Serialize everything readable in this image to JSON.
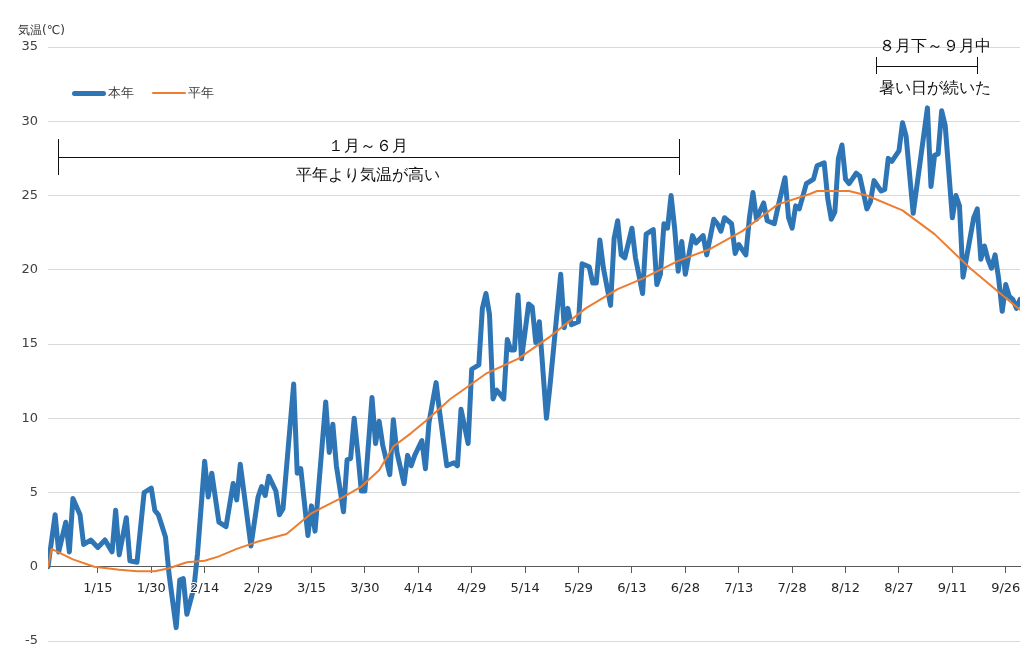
{
  "chart_data": {
    "type": "line",
    "ylabel": "気温(℃)",
    "xlim": [
      "--01-01",
      "--09-30"
    ],
    "xticks": [
      {
        "value": "--01-15",
        "label": "1/15"
      },
      {
        "value": "--01-30",
        "label": "1/30"
      },
      {
        "value": "--02-14",
        "label": "2/14"
      },
      {
        "value": "--02-29",
        "label": "2/29"
      },
      {
        "value": "--03-15",
        "label": "3/15"
      },
      {
        "value": "--03-30",
        "label": "3/30"
      },
      {
        "value": "--04-14",
        "label": "4/14"
      },
      {
        "value": "--04-29",
        "label": "4/29"
      },
      {
        "value": "--05-14",
        "label": "5/14"
      },
      {
        "value": "--05-29",
        "label": "5/29"
      },
      {
        "value": "--06-13",
        "label": "6/13"
      },
      {
        "value": "--06-28",
        "label": "6/28"
      },
      {
        "value": "--07-13",
        "label": "7/13"
      },
      {
        "value": "--07-28",
        "label": "7/28"
      },
      {
        "value": "--08-12",
        "label": "8/12"
      },
      {
        "value": "--08-27",
        "label": "8/27"
      },
      {
        "value": "--09-11",
        "label": "9/11"
      },
      {
        "value": "--09-26",
        "label": "9/26"
      }
    ],
    "ylim": [
      -5,
      35
    ],
    "yticks": [
      -5,
      0,
      5,
      10,
      15,
      20,
      25,
      30,
      35
    ],
    "grid": "y",
    "legend": "top left",
    "marker": "none",
    "annotations": [
      "１月～６月",
      "平年より気温が高い",
      "８月下～９月中",
      "暑い日が続いた"
    ],
    "series": [
      {
        "name": "本年",
        "color": "#2e75b6",
        "x": [
          "--01-01",
          "--01-03",
          "--01-04",
          "--01-06",
          "--01-07",
          "--01-08",
          "--01-10",
          "--01-11",
          "--01-13",
          "--01-15",
          "--01-17",
          "--01-19",
          "--01-20",
          "--01-21",
          "--01-23",
          "--01-24",
          "--01-26",
          "--01-28",
          "--01-30",
          "--01-31",
          "--02-01",
          "--02-03",
          "--02-04",
          "--02-06",
          "--02-07",
          "--02-08",
          "--02-09",
          "--02-11",
          "--02-12",
          "--02-14",
          "--02-15",
          "--02-16",
          "--02-18",
          "--02-20",
          "--02-22",
          "--02-23",
          "--02-24",
          "--02-27",
          "--02-29",
          "--03-01",
          "--03-02",
          "--03-03",
          "--03-05",
          "--03-06",
          "--03-07",
          "--03-10",
          "--03-11",
          "--03-12",
          "--03-14",
          "--03-15",
          "--03-16",
          "--03-19",
          "--03-20",
          "--03-21",
          "--03-22",
          "--03-24",
          "--03-25",
          "--03-26",
          "--03-27",
          "--03-28",
          "--03-29",
          "--03-30",
          "--04-01",
          "--04-02",
          "--04-03",
          "--04-04",
          "--04-06",
          "--04-07",
          "--04-08",
          "--04-10",
          "--04-11",
          "--04-12",
          "--04-13",
          "--04-15",
          "--04-16",
          "--04-17",
          "--04-19",
          "--04-20",
          "--04-22",
          "--04-24",
          "--04-25",
          "--04-26",
          "--04-28",
          "--04-29",
          "--05-01",
          "--05-02",
          "--05-03",
          "--05-04",
          "--05-05",
          "--05-06",
          "--05-08",
          "--05-09",
          "--05-10",
          "--05-11",
          "--05-12",
          "--05-13",
          "--05-15",
          "--05-16",
          "--05-17",
          "--05-18",
          "--05-20",
          "--05-21",
          "--05-22",
          "--05-24",
          "--05-25",
          "--05-26",
          "--05-27",
          "--05-29",
          "--05-30",
          "--06-01",
          "--06-02",
          "--06-03",
          "--06-04",
          "--06-05",
          "--06-07",
          "--06-08",
          "--06-09",
          "--06-10",
          "--06-11",
          "--06-13",
          "--06-14",
          "--06-16",
          "--06-17",
          "--06-19",
          "--06-20",
          "--06-21",
          "--06-22",
          "--06-23",
          "--06-24",
          "--06-25",
          "--06-26",
          "--06-27",
          "--06-28",
          "--06-30",
          "--07-01",
          "--07-03",
          "--07-04",
          "--07-06",
          "--07-07",
          "--07-08",
          "--07-09",
          "--07-11",
          "--07-12",
          "--07-13",
          "--07-15",
          "--07-16",
          "--07-17",
          "--07-18",
          "--07-20",
          "--07-21",
          "--07-23",
          "--07-24",
          "--07-26",
          "--07-27",
          "--07-28",
          "--07-29",
          "--07-30",
          "--08-01",
          "--08-03",
          "--08-04",
          "--08-06",
          "--08-07",
          "--08-08",
          "--08-09",
          "--08-10",
          "--08-11",
          "--08-12",
          "--08-13",
          "--08-15",
          "--08-16",
          "--08-18",
          "--08-19",
          "--08-20",
          "--08-22",
          "--08-23",
          "--08-24",
          "--08-25",
          "--08-27",
          "--08-28",
          "--08-29",
          "--08-31",
          "--09-04",
          "--09-05",
          "--09-06",
          "--09-07",
          "--09-08",
          "--09-09",
          "--09-11",
          "--09-12",
          "--09-13",
          "--09-14",
          "--09-17",
          "--09-18",
          "--09-19",
          "--09-20",
          "--09-21",
          "--09-22",
          "--09-23",
          "--09-24",
          "--09-25",
          "--09-26",
          "--09-27",
          "--09-28",
          "--09-29",
          "--09-30"
        ],
        "values": [
          0,
          3.5,
          1.0,
          3.0,
          1.0,
          4.6,
          3.5,
          1.5,
          1.8,
          1.3,
          1.8,
          1.0,
          3.8,
          0.8,
          3.3,
          0.4,
          0.3,
          5.0,
          5.3,
          3.8,
          3.5,
          2.0,
          -0.5,
          -4.1,
          -0.9,
          -0.8,
          -3.2,
          -1.4,
          0.9,
          7.1,
          4.7,
          6.3,
          3.0,
          2.7,
          5.6,
          4.5,
          6.9,
          1.4,
          4.7,
          5.4,
          4.8,
          6.1,
          5.1,
          3.5,
          3.9,
          12.3,
          6.3,
          6.6,
          2.1,
          4.1,
          2.4,
          11.1,
          7.7,
          9.6,
          6.8,
          3.7,
          7.2,
          7.3,
          10.0,
          7.7,
          5.1,
          5.1,
          11.4,
          8.3,
          9.8,
          8.2,
          6.2,
          9.9,
          7.7,
          5.6,
          7.5,
          6.8,
          7.5,
          8.5,
          6.6,
          9.7,
          12.4,
          10.4,
          6.8,
          7.0,
          6.8,
          10.6,
          8.3,
          13.3,
          13.6,
          17.4,
          18.4,
          17.0,
          11.3,
          11.9,
          11.3,
          15.3,
          14.6,
          14.6,
          18.3,
          14.0,
          17.7,
          17.5,
          15.1,
          16.5,
          10.0,
          12.2,
          14.7,
          19.7,
          16.1,
          17.4,
          16.3,
          16.5,
          20.4,
          20.2,
          19.1,
          19.1,
          22.0,
          20.1,
          17.6,
          22.1,
          23.3,
          21.0,
          20.8,
          22.8,
          20.8,
          18.4,
          22.4,
          22.7,
          19.0,
          19.7,
          23.1,
          22.8,
          25.0,
          22.8,
          19.9,
          21.9,
          19.7,
          22.3,
          21.8,
          22.3,
          21.0,
          23.4,
          23.1,
          22.6,
          23.5,
          23.1,
          21.1,
          21.7,
          21.0,
          23.5,
          25.2,
          23.4,
          24.5,
          23.3,
          23.1,
          24.2,
          26.2,
          23.5,
          22.8,
          24.3,
          24.1,
          25.8,
          26.1,
          27.0,
          27.2,
          24.8,
          23.4,
          23.9,
          27.5,
          28.4,
          26.1,
          25.8,
          26.5,
          26.3,
          24.1,
          24.6,
          26.0,
          25.3,
          25.4,
          27.5,
          27.3,
          28.0,
          29.9,
          29.0,
          23.8,
          30.9,
          25.6,
          27.7,
          27.8,
          30.7,
          29.7,
          23.5,
          25.0,
          24.3,
          19.5,
          23.5,
          24.1,
          20.7,
          21.6,
          20.7,
          20.1,
          21.0,
          19.4,
          17.2,
          19.0,
          18.2,
          18.0,
          17.4,
          18.0
        ]
      },
      {
        "name": "平年",
        "color": "#ed7d31",
        "x": [
          "--01-01",
          "--01-02",
          "--01-08",
          "--01-14",
          "--01-21",
          "--01-26",
          "--01-31",
          "--02-04",
          "--02-09",
          "--02-14",
          "--02-18",
          "--02-23",
          "--02-29",
          "--03-08",
          "--03-15",
          "--03-19",
          "--03-24",
          "--03-29",
          "--04-03",
          "--04-07",
          "--04-12",
          "--04-16",
          "--04-23",
          "--05-03",
          "--05-12",
          "--05-21",
          "--05-31",
          "--06-09",
          "--06-16",
          "--06-26",
          "--07-05",
          "--07-14",
          "--07-24",
          "--08-02",
          "--08-04",
          "--08-13",
          "--08-18",
          "--08-28",
          "--09-06",
          "--09-16",
          "--09-25",
          "--09-30"
        ],
        "values": [
          0,
          1.2,
          0.5,
          0.0,
          -0.2,
          -0.3,
          -0.3,
          -0.1,
          0.3,
          0.4,
          0.7,
          1.2,
          1.7,
          2.2,
          3.6,
          4.1,
          4.7,
          5.4,
          6.5,
          8.1,
          9.0,
          9.8,
          11.3,
          13.0,
          14.0,
          15.5,
          17.4,
          18.7,
          19.4,
          20.6,
          21.4,
          22.6,
          24.4,
          25.1,
          25.3,
          25.3,
          25.0,
          24.0,
          22.4,
          20.1,
          18.3,
          17.3
        ]
      }
    ]
  }
}
